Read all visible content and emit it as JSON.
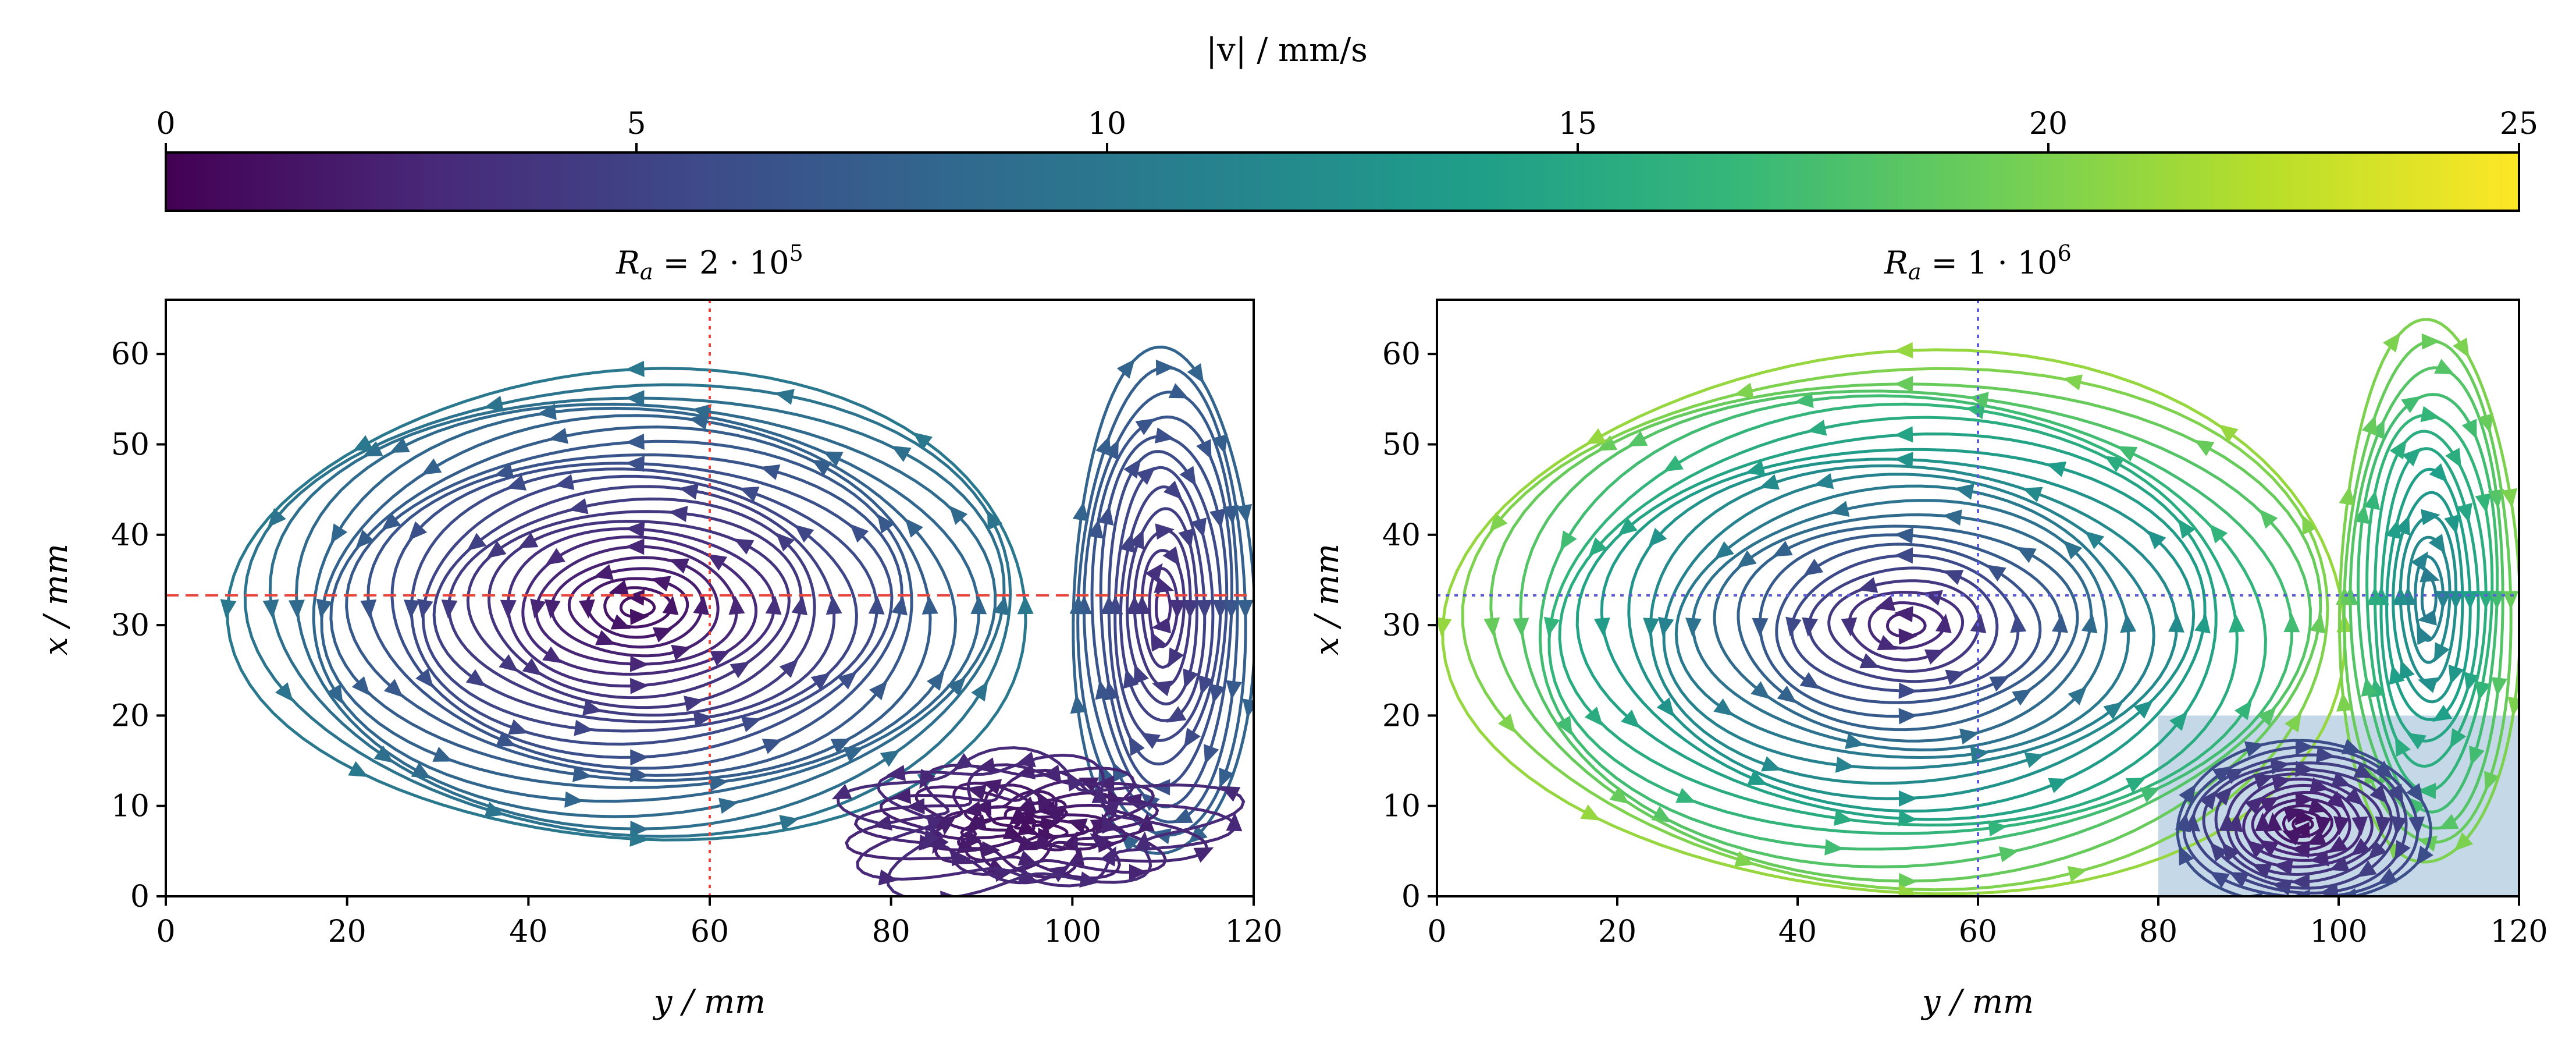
{
  "colorbar": {
    "label": "|v| / mm/s",
    "min": 0,
    "max": 25,
    "ticks": [
      0,
      5,
      10,
      15,
      20,
      25
    ],
    "tick_labels": [
      "0",
      "5",
      "10",
      "15",
      "20",
      "25"
    ],
    "colors": [
      "#440154",
      "#482878",
      "#3e4989",
      "#31688e",
      "#26828e",
      "#1f9e89",
      "#35b779",
      "#6ece58",
      "#b5de2b",
      "#fde725"
    ]
  },
  "chart_data": [
    {
      "type": "streamplot",
      "title": "R_a = 2 · 10^5",
      "title_parts": {
        "base": "R",
        "sub": "a",
        "rest": " = 2 · 10",
        "sup": "5"
      },
      "xlabel": "y / mm",
      "ylabel": "x / mm",
      "xlim": [
        0,
        120
      ],
      "ylim": [
        0,
        66
      ],
      "xticks": [
        0,
        20,
        40,
        60,
        80,
        100,
        120
      ],
      "yticks": [
        0,
        10,
        20,
        30,
        40,
        50,
        60
      ],
      "speed_unit": "mm/s",
      "vortices": [
        {
          "name": "main vortex",
          "center": [
            52,
            32
          ],
          "rx": 44,
          "ry": 26,
          "direction": "counter-clockwise",
          "core_speed": 1,
          "outer_speed": 10
        },
        {
          "name": "right cell",
          "center": [
            110,
            32
          ],
          "rx": 10,
          "ry": 28,
          "direction": "clockwise",
          "core_speed": 3,
          "outer_speed": 8
        },
        {
          "name": "bottom-right eddy",
          "center": [
            95,
            8
          ],
          "rx": 18,
          "ry": 7,
          "direction": "chaotic",
          "core_speed": 1,
          "outer_speed": 3
        }
      ],
      "guide_lines": [
        {
          "orientation": "horizontal",
          "value": 33.3,
          "color": "#e8453c",
          "style": "dashed"
        },
        {
          "orientation": "vertical",
          "value": 60,
          "color": "#e8453c",
          "style": "dotted"
        }
      ],
      "highlight_region": null
    },
    {
      "type": "streamplot",
      "title": "R_a = 1 · 10^6",
      "title_parts": {
        "base": "R",
        "sub": "a",
        "rest": " = 1 · 10",
        "sup": "6"
      },
      "xlabel": "y / mm",
      "ylabel": "x / mm",
      "xlim": [
        0,
        120
      ],
      "ylim": [
        0,
        66
      ],
      "xticks": [
        0,
        20,
        40,
        60,
        80,
        100,
        120
      ],
      "yticks": [
        0,
        10,
        20,
        30,
        40,
        50,
        60
      ],
      "speed_unit": "mm/s",
      "vortices": [
        {
          "name": "main vortex",
          "center": [
            52,
            30
          ],
          "rx": 50,
          "ry": 30,
          "direction": "counter-clockwise",
          "core_speed": 2,
          "outer_speed": 21
        },
        {
          "name": "right cell",
          "center": [
            110,
            33
          ],
          "rx": 10,
          "ry": 30,
          "direction": "clockwise",
          "core_speed": 10,
          "outer_speed": 20
        },
        {
          "name": "bottom-right eddy",
          "center": [
            96,
            8
          ],
          "rx": 14,
          "ry": 9,
          "direction": "clockwise",
          "core_speed": 1,
          "outer_speed": 6
        }
      ],
      "guide_lines": [
        {
          "orientation": "horizontal",
          "value": 33.3,
          "color": "#5b5bd6",
          "style": "dotted"
        },
        {
          "orientation": "vertical",
          "value": 60,
          "color": "#5b5bd6",
          "style": "dotted"
        }
      ],
      "highlight_region": {
        "x0": 80,
        "x1": 120,
        "y0": 0,
        "y1": 20,
        "color": "#7fa8cc",
        "opacity": 0.45
      }
    }
  ]
}
